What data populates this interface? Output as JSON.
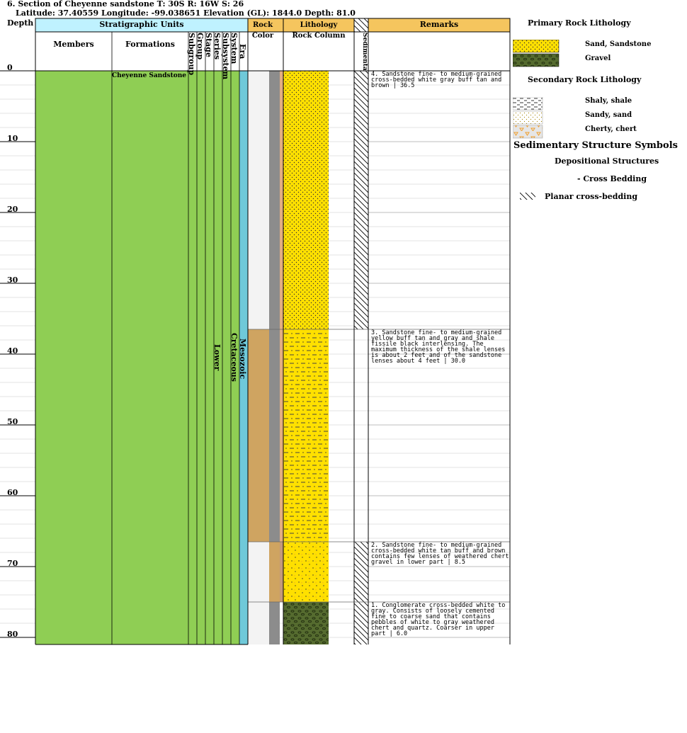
{
  "header": {
    "title": "6. Section of Cheyenne sandstone T: 30S R: 16W S: 26",
    "subtitle": "Latitude: 37.40559 Longitude: -99.038651 Elevation (GL): 1844.0 Depth: 81.0"
  },
  "columns": {
    "depth": "Depth",
    "stratigraphic_units": "Stratigraphic Units",
    "members": "Members",
    "formations": "Formations",
    "subgroup": "Subgroup",
    "group": "Group",
    "stage": "Stage",
    "series": "Series",
    "subsystem": "Subsystem",
    "system": "System",
    "era": "Era",
    "rock": "Rock",
    "color": "Color",
    "lithology": "Lithology",
    "rock_column": "Rock Column",
    "sedimentary_structures": "Sedimentary Structures",
    "remarks": "Remarks"
  },
  "units": {
    "formation": "Cheyenne Sandstone",
    "series": "Lower",
    "system": "Cretaceous",
    "era": "Mesozoic"
  },
  "colors": {
    "units_fill": "#8fce54",
    "era_fill": "#6fc9d9",
    "strat_header": "#bff2ff",
    "remarks_header": "#f5c55e",
    "sand_yellow": "#ffe000",
    "gravel_green": "#556b2f",
    "color_white": "#f3f3f3",
    "color_gray": "#8c8c8c",
    "color_buff": "#e3ae82",
    "color_tan": "#cfa461",
    "color_brown": "#c4997a"
  },
  "chart_data": {
    "type": "table",
    "depth_axis": {
      "min": 0,
      "max": 81,
      "ticks": [
        0,
        10,
        20,
        30,
        40,
        50,
        60,
        70,
        80
      ]
    },
    "beds": [
      {
        "number": 4,
        "top": 0,
        "base": 36.5,
        "lithology": "sandstone",
        "structure": "planar cross-bedding",
        "colors": [
          "white",
          "gray",
          "buff"
        ],
        "remark": "4. Sandstone fine- to medium-grained cross-bedded white gray buff tan and brown | 36.5"
      },
      {
        "number": 3,
        "top": 36.5,
        "base": 66.5,
        "lithology": "sandstone with shale",
        "structure": "",
        "colors": [
          "tan",
          "gray",
          "buff"
        ],
        "remark": "3. Sandstone fine- to medium-grained yellow buff tan and gray and shale fissile black interlensing. The maximum thickness of the shale lenses is about 2 feet and of the sandstone lenses about 4 feet | 30.0"
      },
      {
        "number": 2,
        "top": 66.5,
        "base": 75,
        "lithology": "sandstone with chert",
        "structure": "planar cross-bedding",
        "colors": [
          "white",
          "tan",
          "brown"
        ],
        "remark": "2. Sandstone fine- to medium-grained cross-bedded white tan buff and brown contains few lenses of weathered chert gravel in lower part | 8.5"
      },
      {
        "number": 1,
        "top": 75,
        "base": 81,
        "lithology": "conglomerate",
        "structure": "planar cross-bedding",
        "colors": [
          "white",
          "gray"
        ],
        "remark": "1. Conglomerate cross-bedded white to gray. Consists of loosely cemented fine to coarse sand that contains pebbles of white to gray weathered chert and quartz. Coarser in upper part | 6.0"
      }
    ]
  },
  "legend": {
    "primary_title": "Primary Rock Lithology",
    "primary": [
      {
        "label": "Sand, Sandstone",
        "pattern": "sand"
      },
      {
        "label": "Gravel",
        "pattern": "gravel"
      }
    ],
    "secondary_title": "Secondary Rock Lithology",
    "secondary": [
      {
        "label": "Shaly, shale",
        "pattern": "shale"
      },
      {
        "label": "Sandy, sand",
        "pattern": "sandy"
      },
      {
        "label": "Cherty, chert",
        "pattern": "chert"
      }
    ],
    "structures_title": "Sedimentary Structure Symbols",
    "depositional_title": "Depositional Structures",
    "cross_bedding": "- Cross Bedding",
    "planar": "Planar cross-bedding"
  }
}
